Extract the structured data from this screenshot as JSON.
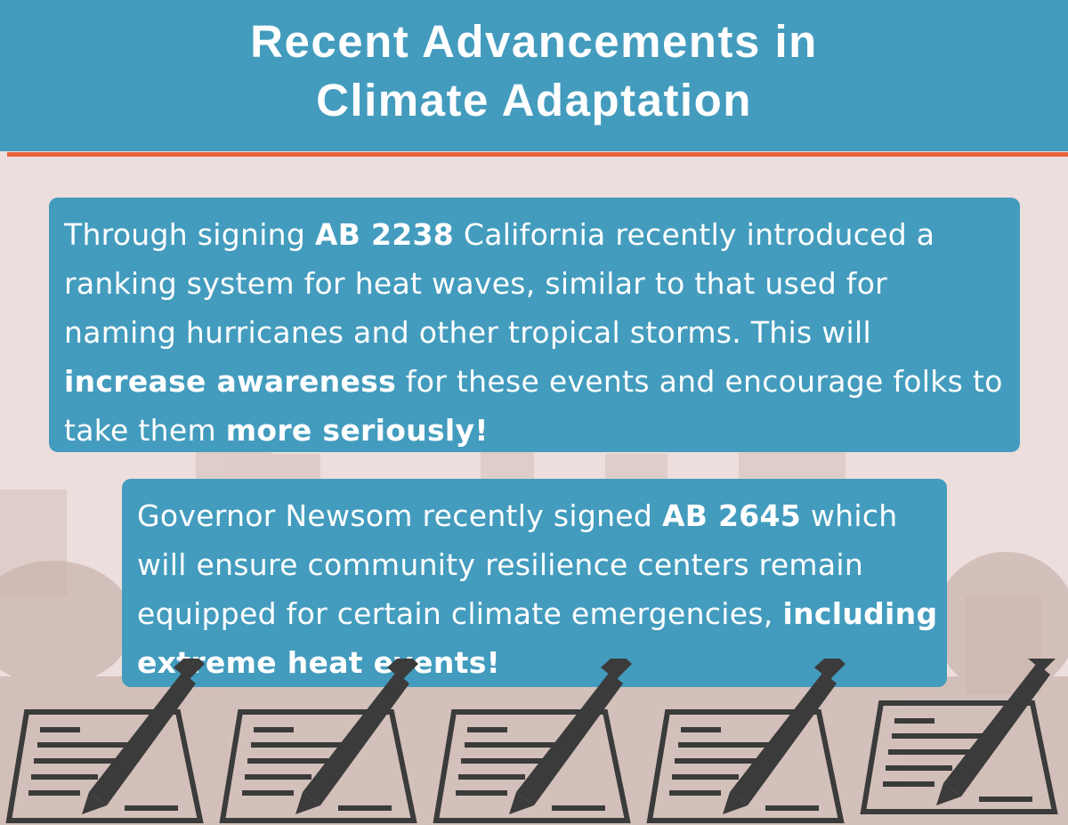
{
  "header": {
    "title_lines": [
      "Recent Advancements in",
      "Climate Adaptation"
    ]
  },
  "boxes": [
    {
      "segments": [
        {
          "text": "Through signing ",
          "bold": false
        },
        {
          "text": "AB 2238",
          "bold": true
        },
        {
          "text": " California recently introduced a ranking system for heat waves, similar to that used for naming hurricanes and other tropical storms. This will ",
          "bold": false
        },
        {
          "text": "increase awareness",
          "bold": true
        },
        {
          "text": " for these events and encourage folks to take them ",
          "bold": false
        },
        {
          "text": "more seriously!",
          "bold": true
        }
      ]
    },
    {
      "segments": [
        {
          "text": "Governor Newsom recently signed ",
          "bold": false
        },
        {
          "text": "AB 2645",
          "bold": true
        },
        {
          "text": " which will ensure community resilience centers remain equipped for certain climate emergencies, ",
          "bold": false
        },
        {
          "text": "including extreme heat events!",
          "bold": true
        }
      ]
    }
  ]
}
